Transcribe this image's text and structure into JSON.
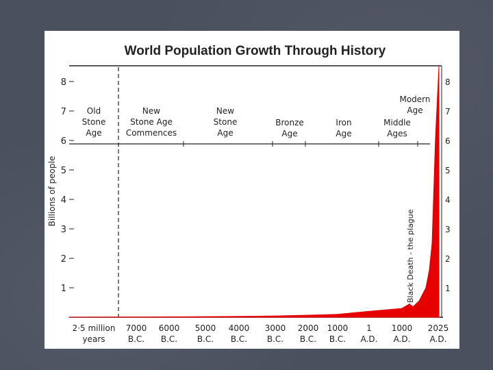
{
  "slide": {
    "background_color": "#4b505f",
    "bullet_icon": "triangle-bullet-icon"
  },
  "chart_data": {
    "type": "area",
    "title": "World Population Growth Through History",
    "ylabel": "Billions of people",
    "xlabel": "",
    "ylim": [
      0,
      8.5
    ],
    "y_ticks": [
      "1",
      "2",
      "3",
      "4",
      "5",
      "6",
      "7",
      "8"
    ],
    "right_y_ticks": [
      "1",
      "2",
      "3",
      "4",
      "5",
      "6",
      "7",
      "8"
    ],
    "x_tick_labels": [
      {
        "top": "2·5 million",
        "bottom": "years"
      },
      {
        "top": "7000",
        "bottom": "B.C."
      },
      {
        "top": "6000",
        "bottom": "B.C."
      },
      {
        "top": "5000",
        "bottom": "B.C."
      },
      {
        "top": "4000",
        "bottom": "B.C."
      },
      {
        "top": "3000",
        "bottom": "B.C."
      },
      {
        "top": "2000",
        "bottom": "B.C."
      },
      {
        "top": "1000",
        "bottom": "B.C."
      },
      {
        "top": "1",
        "bottom": "A.D."
      },
      {
        "top": "1000",
        "bottom": "A.D."
      },
      {
        "top": "2025",
        "bottom": "A.D."
      }
    ],
    "series": [
      {
        "color": "#e60000",
        "points": [
          {
            "x": "2·5 million years",
            "y": 0.0
          },
          {
            "x": "8000 B.C.",
            "y": 0.005
          },
          {
            "x": "7000 B.C.",
            "y": 0.01
          },
          {
            "x": "6000 B.C.",
            "y": 0.015
          },
          {
            "x": "5000 B.C.",
            "y": 0.02
          },
          {
            "x": "4000 B.C.",
            "y": 0.03
          },
          {
            "x": "3000 B.C.",
            "y": 0.045
          },
          {
            "x": "2000 B.C.",
            "y": 0.07
          },
          {
            "x": "1000 B.C.",
            "y": 0.1
          },
          {
            "x": "1 A.D.",
            "y": 0.2
          },
          {
            "x": "1000 A.D.",
            "y": 0.3
          },
          {
            "x": "1340 A.D.",
            "y": 0.45
          },
          {
            "x": "1400 A.D.",
            "y": 0.35
          },
          {
            "x": "1600 A.D.",
            "y": 0.55
          },
          {
            "x": "1800 A.D.",
            "y": 1.0
          },
          {
            "x": "1900 A.D.",
            "y": 1.6
          },
          {
            "x": "1950 A.D.",
            "y": 2.5
          },
          {
            "x": "2000 A.D.",
            "y": 6.1
          },
          {
            "x": "2025 A.D.",
            "y": 8.5
          }
        ]
      }
    ],
    "eras": [
      {
        "lines": [
          "Old",
          "Stone",
          "Age"
        ]
      },
      {
        "lines": [
          "New",
          "Stone Age",
          "Commences"
        ]
      },
      {
        "lines": [
          "New",
          "Stone",
          "Age"
        ]
      },
      {
        "lines": [
          "Bronze",
          "Age"
        ]
      },
      {
        "lines": [
          "Iron",
          "Age"
        ]
      },
      {
        "lines": [
          "Middle",
          "Ages"
        ]
      },
      {
        "lines": [
          "Modern",
          "Age"
        ]
      }
    ],
    "annotations": [
      {
        "text": "Black Death - the plague"
      }
    ],
    "grid": false
  }
}
